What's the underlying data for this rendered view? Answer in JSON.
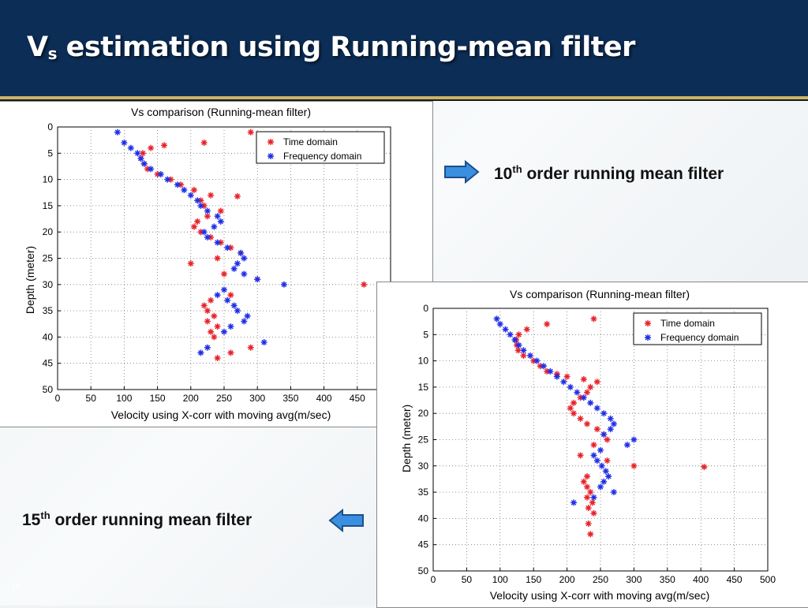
{
  "slide": {
    "title_main": "V",
    "title_sub": "s",
    "title_rest": " estimation using Running-mean filter",
    "slide_number": "16"
  },
  "notes": {
    "note1": {
      "ord": "10",
      "sup": "th",
      "text": " order running mean filter"
    },
    "note2": {
      "ord": "15",
      "sup": "th",
      "text": " order running mean filter"
    }
  },
  "colors": {
    "time_domain": "#e8222a",
    "freq_domain": "#1f2ee6",
    "header": "#0c2d56",
    "arrow": "#3a8fe0"
  },
  "chart_data": [
    {
      "type": "scatter",
      "title": "Vs comparison (Running-mean filter)",
      "xlabel": "Velocity using X-corr with moving avg(m/sec)",
      "ylabel": "Depth (meter)",
      "xlim": [
        0,
        500
      ],
      "ylim": [
        0,
        50
      ],
      "y_inverted": true,
      "xticks": [
        0,
        50,
        100,
        150,
        200,
        250,
        300,
        350,
        400,
        450
      ],
      "yticks": [
        0,
        5,
        10,
        15,
        20,
        25,
        30,
        35,
        40,
        45,
        50
      ],
      "grid": true,
      "legend_position": "top-right",
      "series": [
        {
          "name": "Time domain",
          "color": "#e8222a",
          "x": [
            290,
            220,
            160,
            140,
            128,
            125,
            130,
            135,
            150,
            170,
            185,
            205,
            230,
            270,
            215,
            220,
            245,
            225,
            210,
            205,
            215,
            230,
            245,
            260,
            275,
            240,
            200,
            250,
            300,
            460,
            260,
            230,
            220,
            225,
            235,
            225,
            240,
            230,
            235,
            290,
            260,
            240
          ],
          "y": [
            1,
            3,
            3.5,
            4,
            5,
            6,
            7,
            8,
            9,
            10,
            11,
            12,
            13,
            13.2,
            14,
            15,
            16,
            17,
            18,
            19,
            20,
            21,
            22,
            23,
            24,
            25,
            26,
            28,
            29,
            30,
            32,
            33,
            34,
            35,
            36,
            37,
            38,
            39,
            40,
            42,
            43,
            44
          ]
        },
        {
          "name": "Frequency domain",
          "color": "#1f2ee6",
          "x": [
            90,
            100,
            110,
            120,
            125,
            130,
            140,
            155,
            165,
            180,
            190,
            200,
            210,
            215,
            225,
            240,
            245,
            235,
            220,
            225,
            240,
            255,
            275,
            280,
            270,
            265,
            280,
            300,
            340,
            250,
            240,
            255,
            265,
            270,
            285,
            280,
            260,
            250,
            310,
            225,
            215
          ],
          "y": [
            1,
            3,
            4,
            5,
            6,
            7,
            8,
            9,
            10,
            11,
            12,
            13,
            14,
            15,
            16,
            17,
            18,
            19,
            20,
            21,
            22,
            23,
            24,
            25,
            26,
            27,
            28,
            29,
            30,
            31,
            32,
            33,
            34,
            35,
            36,
            37,
            38,
            39,
            41,
            42,
            43
          ]
        }
      ]
    },
    {
      "type": "scatter",
      "title": "Vs comparison (Running-mean filter)",
      "xlabel": "Velocity using X-corr with moving avg(m/sec)",
      "ylabel": "Depth (meter)",
      "xlim": [
        0,
        500
      ],
      "ylim": [
        0,
        50
      ],
      "y_inverted": true,
      "xticks": [
        0,
        50,
        100,
        150,
        200,
        250,
        300,
        350,
        400,
        450,
        500
      ],
      "yticks": [
        0,
        5,
        10,
        15,
        20,
        25,
        30,
        35,
        40,
        45,
        50
      ],
      "grid": true,
      "legend_position": "top-right",
      "series": [
        {
          "name": "Time domain",
          "color": "#e8222a",
          "x": [
            240,
            170,
            140,
            128,
            124,
            125,
            127,
            135,
            150,
            160,
            170,
            185,
            200,
            225,
            245,
            235,
            230,
            220,
            210,
            205,
            210,
            220,
            230,
            245,
            255,
            260,
            240,
            220,
            260,
            300,
            405,
            230,
            225,
            230,
            235,
            230,
            238,
            232,
            240,
            232,
            235
          ],
          "y": [
            2,
            3,
            4,
            5,
            6,
            7,
            8,
            9,
            10,
            11,
            12,
            12.5,
            13,
            13.5,
            14,
            15,
            16,
            17,
            18,
            19,
            20,
            21,
            22,
            23,
            24,
            25,
            26,
            28,
            29,
            30,
            30.2,
            32,
            33,
            34,
            35,
            36,
            37,
            38,
            39,
            41,
            43
          ]
        },
        {
          "name": "Frequency domain",
          "color": "#1f2ee6",
          "x": [
            95,
            100,
            108,
            115,
            122,
            128,
            135,
            145,
            155,
            165,
            175,
            185,
            195,
            205,
            215,
            225,
            235,
            245,
            255,
            265,
            270,
            265,
            255,
            300,
            290,
            250,
            240,
            245,
            252,
            258,
            262,
            255,
            250,
            270,
            240,
            210
          ],
          "y": [
            2,
            3,
            4,
            5,
            6,
            7,
            8,
            9,
            10,
            11,
            12,
            13,
            14,
            15,
            16,
            17,
            18,
            19,
            20,
            21,
            22,
            23,
            24,
            25,
            26,
            27,
            28,
            29,
            30,
            31,
            32,
            33,
            34,
            35,
            36,
            37
          ]
        }
      ]
    }
  ]
}
